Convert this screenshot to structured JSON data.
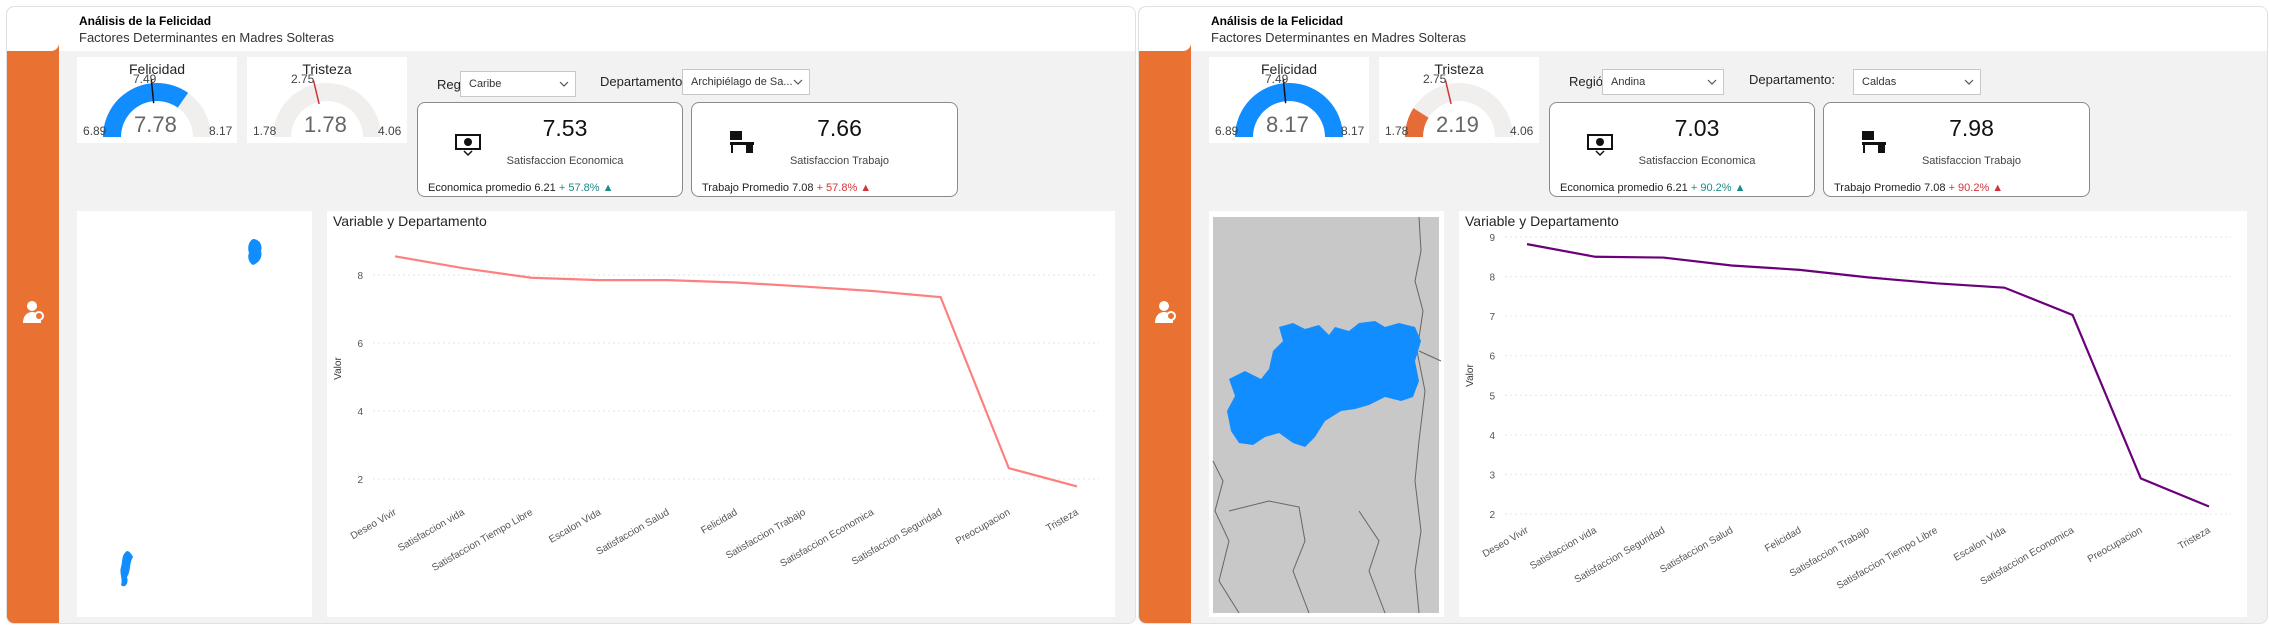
{
  "panels": [
    {
      "header": {
        "title": "Análisis de la Felicidad",
        "subtitle": "Factores Determinantes en Madres Solteras"
      },
      "felicidad": {
        "title": "Felicidad",
        "value": "7.78",
        "min": "6.89",
        "max": "8.17",
        "target": "7.49",
        "value_num": 7.78,
        "min_num": 6.89,
        "max_num": 8.17,
        "target_num": 7.49,
        "fill_color": "#118dff"
      },
      "tristeza": {
        "title": "Tristeza",
        "value": "1.78",
        "min": "1.78",
        "max": "4.06",
        "target": "2.75",
        "value_num": 1.78,
        "min_num": 1.78,
        "max_num": 4.06,
        "target_num": 2.75,
        "fill_color": "#e66c37"
      },
      "filters": {
        "region_label": "Región:",
        "region_value": "Caribe",
        "dept_label": "Departamento:",
        "dept_value": "Archipiélago de Sa..."
      },
      "kpi_economica": {
        "value": "7.53",
        "caption": "Satisfaccion Economica",
        "foot_label": "Economica promedio 6.21",
        "foot_pct": "+ 57.8%",
        "icon": "money-icon"
      },
      "kpi_trabajo": {
        "value": "7.66",
        "caption": "Satisfaccion Trabajo",
        "foot_label": "Trabajo Promedio 7.08",
        "foot_pct": "+ 57.8%",
        "icon": "desk-icon"
      },
      "chart_title": "Variable y Departamento",
      "chart_data": {
        "type": "line",
        "title": "Variable y Departamento",
        "xlabel": "",
        "ylabel": "Valor",
        "ylim": [
          1.5,
          9
        ],
        "yticks": [
          2,
          4,
          6,
          8
        ],
        "color": "#fd8080",
        "categories": [
          "Deseo Vivir",
          "Satisfaccion vida",
          "Satisfaccion Tiempo Libre",
          "Escalon Vida",
          "Satisfaccion Salud",
          "Felicidad",
          "Satisfaccion Trabajo",
          "Satisfaccion Economica",
          "Satisfaccion Seguridad",
          "Preocupacion",
          "Tristeza"
        ],
        "values": [
          8.55,
          8.2,
          7.92,
          7.85,
          7.85,
          7.78,
          7.66,
          7.53,
          7.35,
          2.32,
          1.78
        ],
        "grid": true
      }
    },
    {
      "header": {
        "title": "Análisis de la Felicidad",
        "subtitle": "Factores Determinantes en Madres Solteras"
      },
      "felicidad": {
        "title": "Felicidad",
        "value": "8.17",
        "min": "6.89",
        "max": "8.17",
        "target": "7.49",
        "value_num": 8.17,
        "min_num": 6.89,
        "max_num": 8.17,
        "target_num": 7.49,
        "fill_color": "#118dff"
      },
      "tristeza": {
        "title": "Tristeza",
        "value": "2.19",
        "min": "1.78",
        "max": "4.06",
        "target": "2.75",
        "value_num": 2.19,
        "min_num": 1.78,
        "max_num": 4.06,
        "target_num": 2.75,
        "fill_color": "#e66c37"
      },
      "filters": {
        "region_label": "Región:",
        "region_value": "Andina",
        "dept_label": "Departamento:",
        "dept_value": "Caldas"
      },
      "kpi_economica": {
        "value": "7.03",
        "caption": "Satisfaccion Economica",
        "foot_label": "Economica promedio 6.21",
        "foot_pct": "+ 90.2%",
        "icon": "money-icon"
      },
      "kpi_trabajo": {
        "value": "7.98",
        "caption": "Satisfaccion Trabajo",
        "foot_label": "Trabajo Promedio 7.08",
        "foot_pct": "+ 90.2%",
        "icon": "desk-icon"
      },
      "chart_title": "Variable y Departamento",
      "chart_data": {
        "type": "line",
        "title": "Variable y Departamento",
        "xlabel": "",
        "ylabel": "Valor",
        "ylim": [
          2,
          9
        ],
        "yticks": [
          2,
          3,
          4,
          5,
          6,
          7,
          8,
          9
        ],
        "color": "#6b007b",
        "categories": [
          "Deseo Vivir",
          "Satisfaccion vida",
          "Satisfaccion Seguridad",
          "Satisfaccion Salud",
          "Felicidad",
          "Satisfaccion Trabajo",
          "Satisfaccion Tiempo Libre",
          "Escalon Vida",
          "Satisfaccion Economica",
          "Preocupacion",
          "Tristeza"
        ],
        "values": [
          8.82,
          8.5,
          8.48,
          8.28,
          8.17,
          7.98,
          7.83,
          7.72,
          7.03,
          2.9,
          2.19
        ],
        "grid": true
      }
    }
  ]
}
